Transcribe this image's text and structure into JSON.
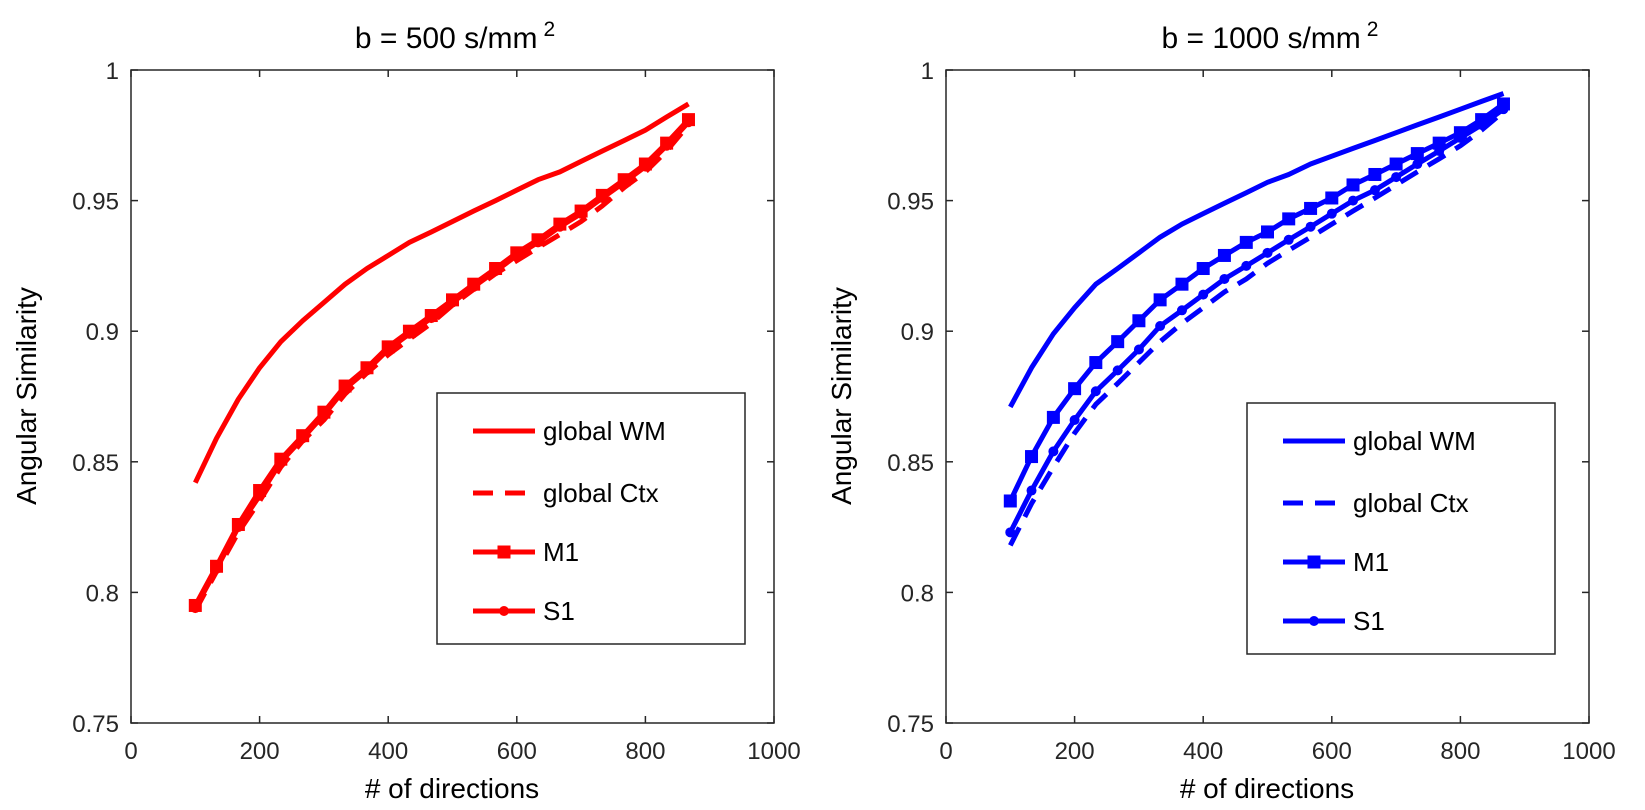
{
  "chart_data": [
    {
      "type": "line",
      "title": "b = 500 s/mm",
      "title_superscript": "2",
      "xlabel": "# of directions",
      "ylabel": "Angular Similarity",
      "xlim": [
        0,
        1000
      ],
      "ylim": [
        0.75,
        1
      ],
      "xticks": [
        "0",
        "200",
        "400",
        "600",
        "800",
        "1000"
      ],
      "yticks": [
        "0.75",
        "0.8",
        "0.85",
        "0.9",
        "0.95",
        "1"
      ],
      "grid": false,
      "legend_position": "lower-right",
      "color": "#ff0000",
      "x": [
        100,
        133,
        167,
        200,
        233,
        267,
        300,
        333,
        367,
        400,
        433,
        467,
        500,
        533,
        567,
        600,
        633,
        667,
        700,
        733,
        767,
        800,
        833,
        867
      ],
      "series": [
        {
          "name": "global WM",
          "style": "solid",
          "values": [
            0.842,
            0.859,
            0.874,
            0.886,
            0.896,
            0.904,
            0.911,
            0.918,
            0.924,
            0.929,
            0.934,
            0.938,
            0.942,
            0.946,
            0.95,
            0.954,
            0.958,
            0.961,
            0.965,
            0.969,
            0.973,
            0.977,
            0.982,
            0.987
          ]
        },
        {
          "name": "global Ctx",
          "style": "dashed",
          "values": [
            0.793,
            0.808,
            0.823,
            0.835,
            0.848,
            0.858,
            0.866,
            0.876,
            0.884,
            0.891,
            0.897,
            0.903,
            0.91,
            0.916,
            0.922,
            0.927,
            0.932,
            0.937,
            0.942,
            0.948,
            0.955,
            0.961,
            0.969,
            0.979
          ]
        },
        {
          "name": "M1",
          "style": "square",
          "values": [
            0.795,
            0.81,
            0.826,
            0.839,
            0.851,
            0.86,
            0.869,
            0.879,
            0.886,
            0.894,
            0.9,
            0.906,
            0.912,
            0.918,
            0.924,
            0.93,
            0.935,
            0.941,
            0.946,
            0.952,
            0.958,
            0.964,
            0.972,
            0.981
          ]
        },
        {
          "name": "S1",
          "style": "circle",
          "values": [
            0.794,
            0.809,
            0.825,
            0.837,
            0.85,
            0.859,
            0.868,
            0.878,
            0.885,
            0.893,
            0.899,
            0.905,
            0.911,
            0.917,
            0.923,
            0.929,
            0.934,
            0.94,
            0.945,
            0.951,
            0.957,
            0.963,
            0.971,
            0.98
          ]
        }
      ]
    },
    {
      "type": "line",
      "title": "b = 1000 s/mm",
      "title_superscript": "2",
      "xlabel": "# of directions",
      "ylabel": "Angular Similarity",
      "xlim": [
        0,
        1000
      ],
      "ylim": [
        0.75,
        1
      ],
      "xticks": [
        "0",
        "200",
        "400",
        "600",
        "800",
        "1000"
      ],
      "yticks": [
        "0.75",
        "0.8",
        "0.85",
        "0.9",
        "0.95",
        "1"
      ],
      "grid": false,
      "legend_position": "lower-right",
      "color": "#0000ff",
      "x": [
        100,
        133,
        167,
        200,
        233,
        267,
        300,
        333,
        367,
        400,
        433,
        467,
        500,
        533,
        567,
        600,
        633,
        667,
        700,
        733,
        767,
        800,
        833,
        867
      ],
      "series": [
        {
          "name": "global WM",
          "style": "solid",
          "values": [
            0.871,
            0.886,
            0.899,
            0.909,
            0.918,
            0.924,
            0.93,
            0.936,
            0.941,
            0.945,
            0.949,
            0.953,
            0.957,
            0.96,
            0.964,
            0.967,
            0.97,
            0.973,
            0.976,
            0.979,
            0.982,
            0.985,
            0.988,
            0.991
          ]
        },
        {
          "name": "global Ctx",
          "style": "dashed",
          "values": [
            0.818,
            0.834,
            0.848,
            0.861,
            0.872,
            0.88,
            0.888,
            0.896,
            0.903,
            0.909,
            0.915,
            0.92,
            0.926,
            0.931,
            0.936,
            0.941,
            0.946,
            0.951,
            0.956,
            0.961,
            0.966,
            0.971,
            0.977,
            0.984
          ]
        },
        {
          "name": "M1",
          "style": "square",
          "values": [
            0.835,
            0.852,
            0.867,
            0.878,
            0.888,
            0.896,
            0.904,
            0.912,
            0.918,
            0.924,
            0.929,
            0.934,
            0.938,
            0.943,
            0.947,
            0.951,
            0.956,
            0.96,
            0.964,
            0.968,
            0.972,
            0.976,
            0.981,
            0.987
          ]
        },
        {
          "name": "S1",
          "style": "circle",
          "values": [
            0.823,
            0.839,
            0.854,
            0.866,
            0.877,
            0.885,
            0.893,
            0.902,
            0.908,
            0.914,
            0.92,
            0.925,
            0.93,
            0.935,
            0.94,
            0.945,
            0.95,
            0.954,
            0.959,
            0.964,
            0.969,
            0.974,
            0.979,
            0.985
          ]
        }
      ]
    }
  ]
}
